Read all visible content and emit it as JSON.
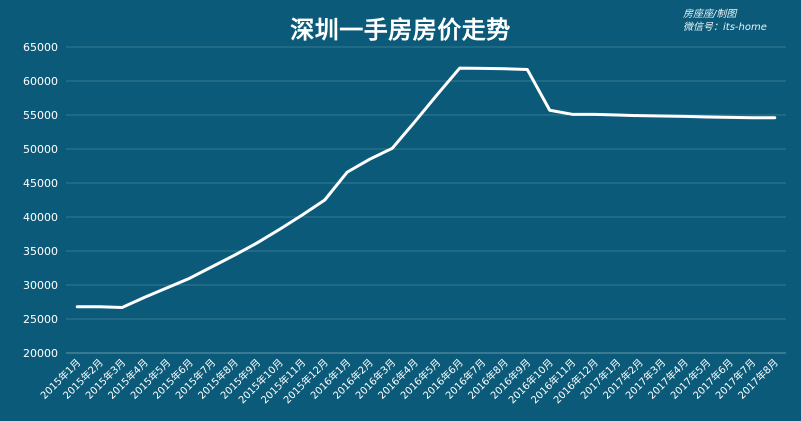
{
  "watermark": {
    "line1": "房座座/制图",
    "line2": "微信号：its-home"
  },
  "chart_data": {
    "type": "line",
    "title": "深圳一手房房价走势",
    "xlabel": "",
    "ylabel": "",
    "ylim": [
      20000,
      65000
    ],
    "yticks": [
      20000,
      25000,
      30000,
      35000,
      40000,
      45000,
      50000,
      55000,
      60000,
      65000
    ],
    "grid": true,
    "categories": [
      "2015年1月",
      "2015年2月",
      "2015年3月",
      "2015年4月",
      "2015年5月",
      "2015年6月",
      "2015年7月",
      "2015年8月",
      "2015年9月",
      "2015年10月",
      "2015年11月",
      "2015年12月",
      "2016年1月",
      "2016年2月",
      "2016年3月",
      "2016年4月",
      "2016年5月",
      "2016年6月",
      "2016年7月",
      "2016年8月",
      "2016年9月",
      "2016年10月",
      "2016年11月",
      "2016年12月",
      "2017年1月",
      "2017年2月",
      "2017年3月",
      "2017年4月",
      "2017年5月",
      "2017年6月",
      "2017年7月",
      "2017年8月"
    ],
    "series": [
      {
        "name": "",
        "color": "#ffffff",
        "values": [
          26800,
          26800,
          26700,
          28200,
          29600,
          31000,
          32700,
          34400,
          36200,
          38200,
          40300,
          42500,
          46600,
          48500,
          50100,
          54000,
          58000,
          61900,
          61850,
          61800,
          61700,
          55700,
          55100,
          55100,
          55000,
          54900,
          54850,
          54800,
          54700,
          54650,
          54600,
          54600
        ]
      }
    ]
  }
}
